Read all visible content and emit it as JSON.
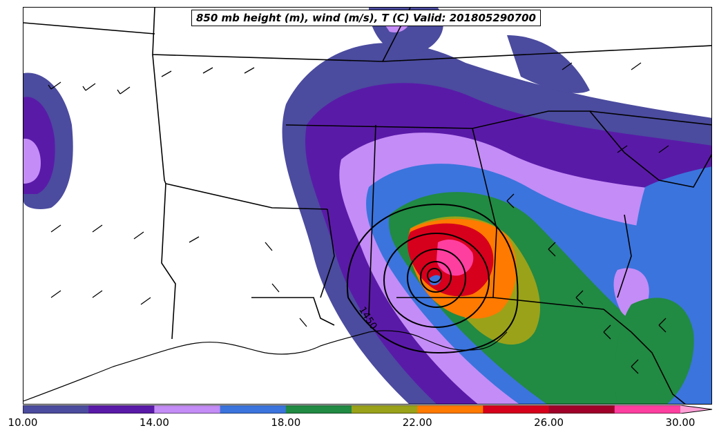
{
  "title": "850 mb height (m), wind (m/s), T (C) Valid: 201805290700",
  "contour_label": "1450",
  "colorbar": {
    "colors": [
      "#4b4b9f",
      "#5a1aa8",
      "#c48cf6",
      "#3b74dd",
      "#218a43",
      "#9aa21a",
      "#ff7a00",
      "#d6001c",
      "#a0002a",
      "#ff3fa0",
      "#ff9fd6"
    ],
    "ticks": [
      "10.00",
      "14.00",
      "18.00",
      "22.00",
      "26.00",
      "30.00"
    ]
  }
}
